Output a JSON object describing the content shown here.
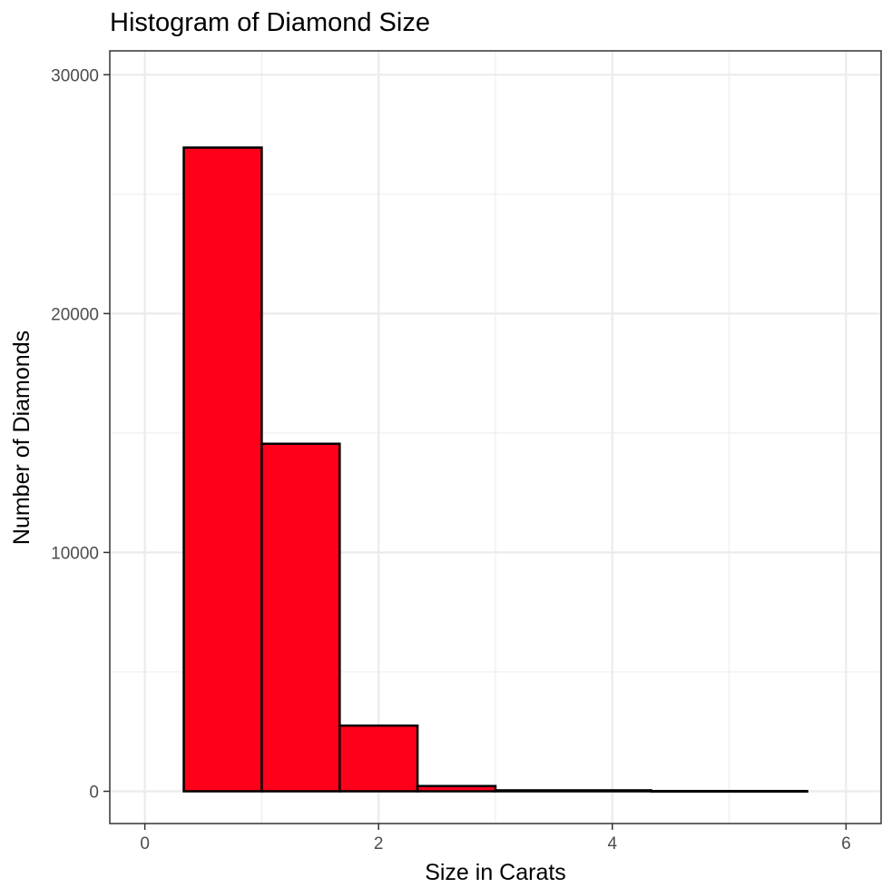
{
  "chart_data": {
    "type": "bar",
    "title": "Histogram of Diamond Size",
    "xlabel": "Size in Carats",
    "ylabel": "Number of Diamonds",
    "bins": [
      {
        "x0": 0.333,
        "x1": 1.0,
        "count": 26950
      },
      {
        "x0": 1.0,
        "x1": 1.667,
        "count": 14550
      },
      {
        "x0": 1.667,
        "x1": 2.333,
        "count": 2750
      },
      {
        "x0": 2.333,
        "x1": 3.0,
        "count": 220
      },
      {
        "x0": 3.0,
        "x1": 4.333,
        "count": 40
      },
      {
        "x0": 4.333,
        "x1": 5.667,
        "count": 10
      }
    ],
    "xlim": [
      -0.3,
      6.3
    ],
    "ylim": [
      -1350,
      31000
    ],
    "x_ticks": [
      0,
      2,
      4,
      6
    ],
    "x_tick_labels": [
      "0",
      "2",
      "4",
      "6"
    ],
    "y_ticks": [
      0,
      10000,
      20000,
      30000
    ],
    "y_tick_labels": [
      "0",
      "10000",
      "20000",
      "30000"
    ],
    "bar_fill": "#ff001b",
    "bar_outline": "#000000",
    "grid": true,
    "panel_background": "#ffffff",
    "grid_color": "#ebebeb",
    "panel_border": "#333333"
  }
}
